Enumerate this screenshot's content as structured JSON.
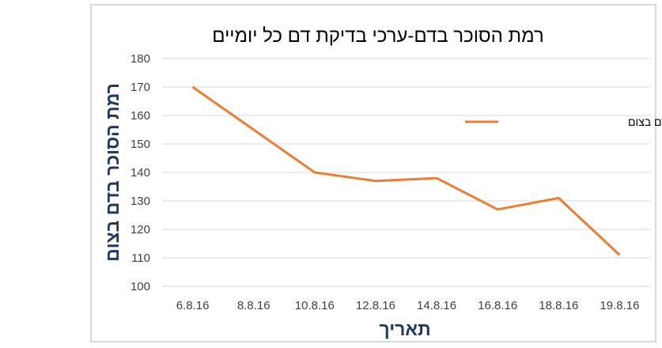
{
  "chart_data": {
    "type": "line",
    "title": "רמת הסוכר בדם-ערכי בדיקת דם כל יומיים",
    "xlabel": "תאריך",
    "ylabel": "רמת הסוכר בדם בצום",
    "categories": [
      "6.8.16",
      "8.8.16",
      "10.8.16",
      "12.8.16",
      "14.8.16",
      "16.8.16",
      "18.8.16",
      "19.8.16"
    ],
    "series": [
      {
        "name": "רמת הסוכר בדם בצום",
        "values": [
          170,
          155,
          140,
          137,
          138,
          127,
          131,
          111
        ],
        "color": "#ed7d31"
      }
    ],
    "ylim": [
      100,
      180
    ],
    "yticks": [
      100,
      110,
      120,
      130,
      140,
      150,
      160,
      170,
      180
    ],
    "grid": "horizontal",
    "legend_position": "right",
    "gridline_color": "#d9d9d9",
    "axis_title_color": "#1f3864"
  }
}
